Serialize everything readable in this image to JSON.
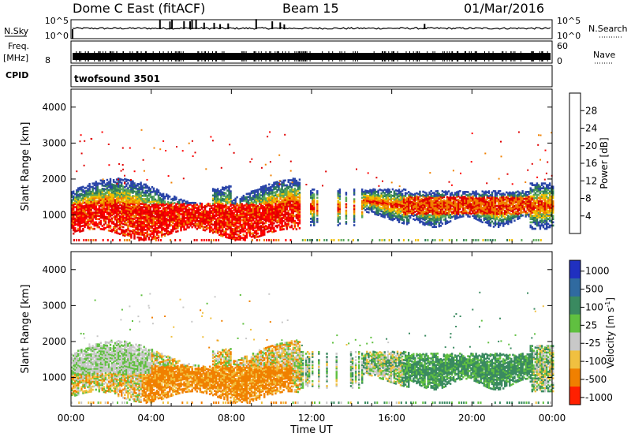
{
  "header": {
    "station": "Dome C East (fitACF)",
    "beam": "Beam 15",
    "date": "01/Mar/2016"
  },
  "params": {
    "nsky_label": "N.Sky",
    "nsky_ticks": [
      "10^5",
      "10^0"
    ],
    "nsearch_label": "N.Search",
    "nsearch_ticks": [
      "10^5",
      "10^0"
    ],
    "freq_label": "Freq.",
    "freq_unit": "[MHz]",
    "freq_ticks": [
      "8"
    ],
    "nave_label": "Nave",
    "nave_ticks": [
      "60",
      "0"
    ],
    "cpid_label": "CPID",
    "cpid_value": "twofsound 3501"
  },
  "chart_data": [
    {
      "type": "heatmap",
      "name": "power",
      "ylabel": "Slant Range [km]",
      "ylim": [
        200,
        4500
      ],
      "yticks": [
        "4000",
        "3000",
        "2000",
        "1000"
      ],
      "xlim": [
        0,
        24
      ],
      "colorbar_label": "Power [dB]",
      "colorbar_ticks": [
        "28",
        "24",
        "20",
        "16",
        "12",
        "8",
        "4"
      ],
      "colors": [
        "#0000ff",
        "#2a45a8",
        "#2f7a5a",
        "#5aa858",
        "#f0c000",
        "#f08000",
        "#e00000",
        "#ff0000"
      ]
    },
    {
      "type": "heatmap",
      "name": "velocity",
      "ylabel": "Slant Range [km]",
      "ylim": [
        200,
        4500
      ],
      "yticks": [
        "4000",
        "3000",
        "2000",
        "1000"
      ],
      "xlim": [
        0,
        24
      ],
      "colorbar_label": "Velocity [m s^-1]",
      "colorbar_ticks": [
        "1000",
        "500",
        "100",
        "25",
        "-25",
        "-100",
        "-500",
        "-1000"
      ],
      "colors": [
        "#2030c0",
        "#306aa0",
        "#3a8a60",
        "#60c040",
        "#c8c8c8",
        "#f0c040",
        "#f08000",
        "#ff2000"
      ]
    }
  ],
  "xaxis": {
    "ticks": [
      "00:00",
      "04:00",
      "08:00",
      "12:00",
      "16:00",
      "20:00",
      "00:00"
    ],
    "label": "Time UT"
  }
}
